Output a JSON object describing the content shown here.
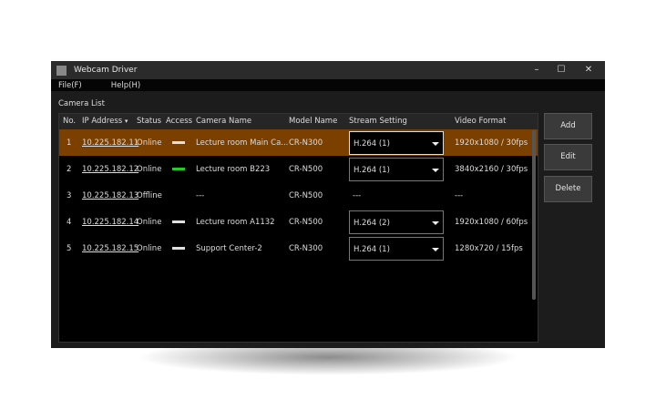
{
  "window": {
    "title": "Webcam Driver"
  },
  "menu": [
    "File(F)",
    "Help(H)"
  ],
  "section_title": "Camera List",
  "columns": [
    "No.",
    "IP Address",
    "Status",
    "Access",
    "Camera Name",
    "Model Name",
    "Stream Setting",
    "Video Format"
  ],
  "rows": [
    {
      "no": "1",
      "ip": "10.225.182.11",
      "status": "Online",
      "access": "#e0e0e0",
      "name": "Lecture room Main Ca...",
      "model": "CR-N300",
      "stream": "H.264 (1)",
      "format": "1920x1080 / 30fps",
      "selected": true
    },
    {
      "no": "2",
      "ip": "10.225.182.12",
      "status": "Online",
      "access": "#22cc22",
      "name": "Lecture room    B223",
      "model": "CR-N500",
      "stream": "H.264 (1)",
      "format": "3840x2160 / 30fps"
    },
    {
      "no": "3",
      "ip": "10.225.182.13",
      "status": "Offline",
      "access": "",
      "name": "---",
      "model": "CR-N500",
      "stream": "---",
      "format": "---"
    },
    {
      "no": "4",
      "ip": "10.225.182.14",
      "status": "Online",
      "access": "#e0e0e0",
      "name": "Lecture room    A1132",
      "model": "CR-N500",
      "stream": "H.264 (2)",
      "format": "1920x1080 / 60fps"
    },
    {
      "no": "5",
      "ip": "10.225.182.15",
      "status": "Online",
      "access": "#e0e0e0",
      "name": "Support Center-2",
      "model": "CR-N300",
      "stream": "H.264 (1)",
      "format": "1280x720 / 15fps"
    }
  ],
  "buttons": {
    "add": "Add",
    "edit": "Edit",
    "delete": "Delete"
  },
  "colors": {
    "selected_row": "#7b3f00",
    "online_active": "#22cc22"
  }
}
